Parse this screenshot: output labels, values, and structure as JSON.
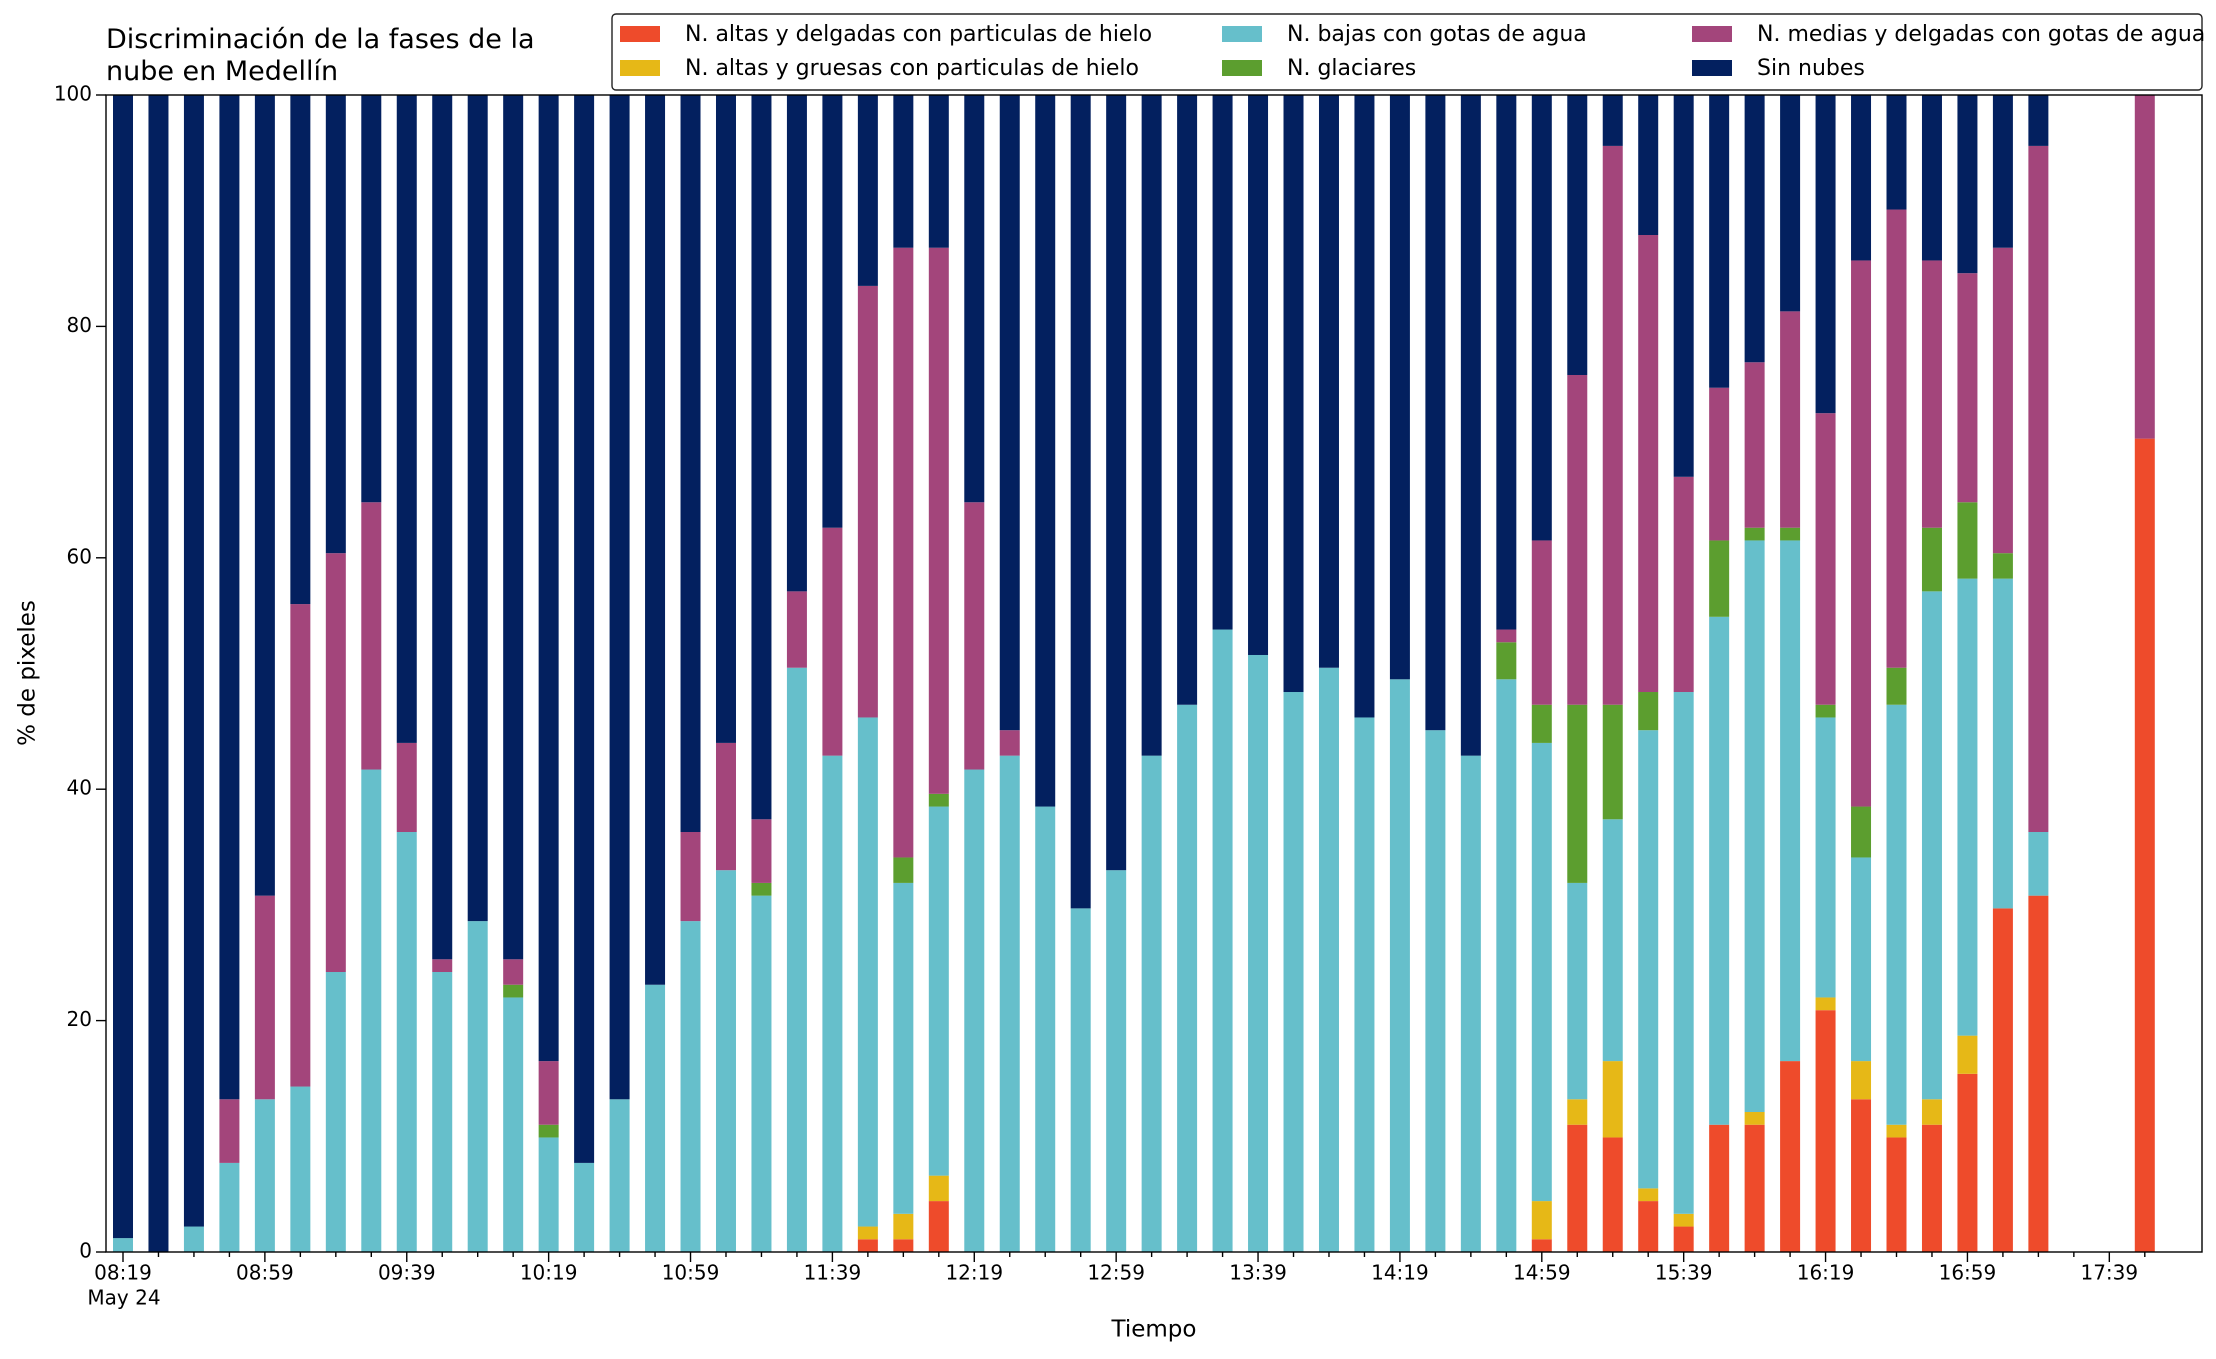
{
  "chart_data": {
    "type": "stacked_bar",
    "title": "Discriminación de la fases de la\nnube en Medellín",
    "xlabel": "Tiempo",
    "ylabel": "% de pixeles",
    "x_sublabel": "May 24",
    "categories": [
      "08:19",
      null,
      null,
      null,
      "08:59",
      null,
      null,
      null,
      "09:39",
      null,
      null,
      null,
      "10:19",
      null,
      null,
      null,
      "10:59",
      null,
      null,
      null,
      "11:39",
      null,
      null,
      null,
      "12:19",
      null,
      null,
      null,
      "12:59",
      null,
      null,
      null,
      "13:39",
      null,
      null,
      null,
      "14:19",
      null,
      null,
      null,
      "14:59",
      null,
      null,
      null,
      "15:39",
      null,
      null,
      null,
      "16:19",
      null,
      null,
      null,
      "16:59",
      null,
      null,
      null,
      "17:39",
      null
    ],
    "ylim": [
      0,
      100
    ],
    "yticks": [
      0,
      20,
      40,
      60,
      80,
      100
    ],
    "grid": false,
    "series": [
      {
        "name": "N. altas y delgadas con particulas de hielo",
        "color": "#ee4b2b",
        "values": [
          0,
          0,
          0,
          0,
          0,
          0,
          0,
          0,
          0,
          0,
          0,
          0,
          0,
          0,
          0,
          0,
          0,
          0,
          0,
          0,
          0,
          1.1,
          1.1,
          4.4,
          0,
          0,
          0,
          0,
          0,
          0,
          0,
          0,
          0,
          0,
          0,
          0,
          0,
          0,
          0,
          0,
          1.1,
          11.0,
          9.9,
          4.4,
          2.2,
          11.0,
          11.0,
          16.5,
          20.9,
          13.2,
          9.9,
          11.0,
          15.4,
          29.7,
          30.8,
          null,
          null,
          70.3
        ]
      },
      {
        "name": "N. altas y gruesas con particulas de hielo",
        "color": "#e6b817",
        "values": [
          0,
          0,
          0,
          0,
          0,
          0,
          0,
          0,
          0,
          0,
          0,
          0,
          0,
          0,
          0,
          0,
          0,
          0,
          0,
          0,
          0,
          1.1,
          2.2,
          2.2,
          0,
          0,
          0,
          0,
          0,
          0,
          0,
          0,
          0,
          0,
          0,
          0,
          0,
          0,
          0,
          0,
          3.3,
          2.2,
          6.6,
          1.1,
          1.1,
          0,
          1.1,
          0,
          1.1,
          3.3,
          1.1,
          2.2,
          3.3,
          0,
          0,
          null,
          null,
          0
        ]
      },
      {
        "name": "N. bajas con gotas de agua",
        "color": "#66bfcb",
        "values": [
          1.2,
          0,
          2.2,
          7.7,
          13.2,
          14.3,
          24.2,
          41.7,
          36.3,
          24.2,
          28.6,
          22.0,
          9.9,
          7.7,
          13.2,
          23.1,
          28.6,
          33.0,
          30.8,
          50.5,
          42.9,
          44.0,
          28.6,
          31.9,
          41.7,
          42.9,
          38.5,
          29.7,
          33.0,
          42.9,
          47.3,
          53.8,
          51.6,
          48.4,
          50.5,
          46.2,
          49.5,
          45.1,
          42.9,
          49.5,
          39.6,
          18.7,
          20.9,
          39.6,
          45.1,
          43.9,
          49.4,
          45.0,
          24.2,
          17.6,
          36.3,
          43.9,
          39.5,
          28.5,
          5.5,
          null,
          null,
          0
        ]
      },
      {
        "name": "N. glaciares",
        "color": "#5c9e2f",
        "values": [
          0,
          0,
          0,
          0,
          0,
          0,
          0,
          0,
          0,
          0,
          0,
          1.1,
          1.1,
          0,
          0,
          0,
          0,
          0,
          1.1,
          0,
          0,
          0,
          2.2,
          1.1,
          0,
          0,
          0,
          0,
          0,
          0,
          0,
          0,
          0,
          0,
          0,
          0,
          0,
          0,
          0,
          3.2,
          3.3,
          15.4,
          9.9,
          3.3,
          0,
          6.6,
          1.1,
          1.1,
          1.1,
          4.4,
          3.2,
          5.5,
          6.6,
          2.2,
          0,
          null,
          null,
          0
        ]
      },
      {
        "name": "N. medias y delgadas con gotas de agua",
        "color": "#a3457b",
        "values": [
          0,
          0,
          0,
          5.5,
          17.6,
          41.7,
          36.2,
          23.1,
          7.7,
          1.1,
          0,
          2.2,
          5.5,
          0,
          0,
          0,
          7.7,
          11.0,
          5.5,
          6.6,
          19.7,
          37.3,
          52.7,
          47.2,
          23.1,
          2.2,
          0,
          0,
          0,
          0,
          0,
          0,
          0,
          0,
          0,
          0,
          0,
          0,
          0,
          1.1,
          14.2,
          28.5,
          48.3,
          39.5,
          18.6,
          13.2,
          14.3,
          18.7,
          25.2,
          47.2,
          39.6,
          23.1,
          19.8,
          26.4,
          59.3,
          null,
          null,
          29.7
        ]
      },
      {
        "name": "Sin nubes",
        "color": "#03205f",
        "values": [
          98.8,
          100,
          97.8,
          86.8,
          69.2,
          44.0,
          39.6,
          35.2,
          56.0,
          74.7,
          71.4,
          74.7,
          83.5,
          92.3,
          86.8,
          76.9,
          63.7,
          56.0,
          62.6,
          42.9,
          37.4,
          16.5,
          13.2,
          13.2,
          35.2,
          54.9,
          61.5,
          70.3,
          67.0,
          57.1,
          52.7,
          46.2,
          48.4,
          51.6,
          49.5,
          53.8,
          50.5,
          54.9,
          57.1,
          46.2,
          38.5,
          24.2,
          4.4,
          12.1,
          33.0,
          25.3,
          23.1,
          18.7,
          27.5,
          14.3,
          9.9,
          14.3,
          15.4,
          13.2,
          4.4,
          null,
          null,
          0
        ]
      }
    ]
  }
}
